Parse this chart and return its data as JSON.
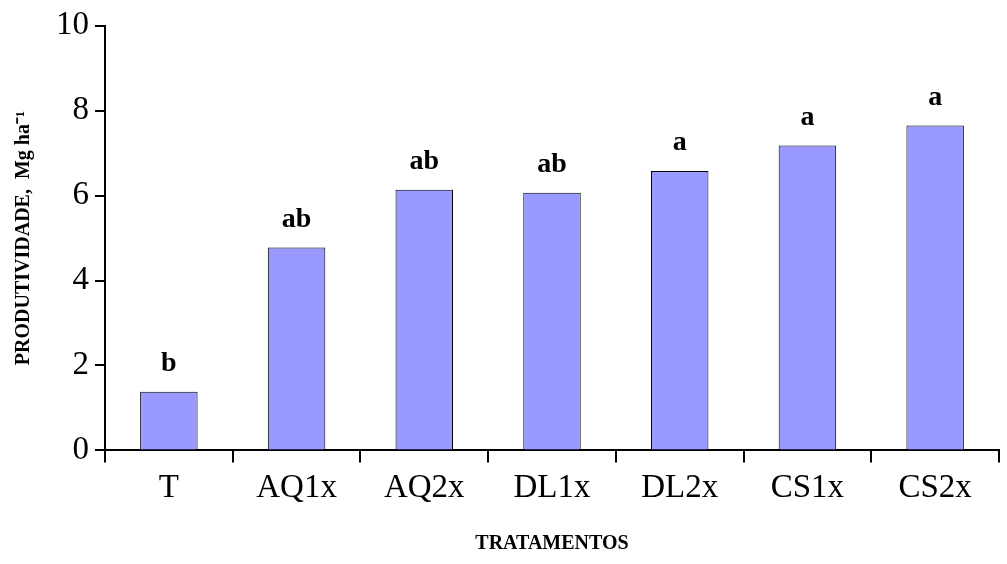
{
  "chart_data": {
    "type": "bar",
    "xlabel": "TRATAMENTOS",
    "ylabel": "PRODUTIVIDADE,  Mg ha⁻¹",
    "categories": [
      "T",
      "AQ1x",
      "AQ2x",
      "DL1x",
      "DL2x",
      "CS1x",
      "CS2x"
    ],
    "values": [
      1.38,
      4.78,
      6.14,
      6.07,
      6.58,
      7.18,
      7.65
    ],
    "color": "#9999ff",
    "ylim": [
      0,
      10
    ],
    "yticks": [
      0,
      2,
      4,
      6,
      8,
      10
    ],
    "grid": false,
    "legend": false,
    "annotations": [
      {
        "text": "b",
        "x": "T",
        "y": 1.38
      },
      {
        "text": "ab",
        "x": "AQ1x",
        "y": 4.78
      },
      {
        "text": "ab",
        "x": "AQ2x",
        "y": 6.14
      },
      {
        "text": "ab",
        "x": "DL1x",
        "y": 6.07
      },
      {
        "text": "a",
        "x": "DL2x",
        "y": 6.58
      },
      {
        "text": "a",
        "x": "CS1x",
        "y": 7.18
      },
      {
        "text": "a",
        "x": "CS2x",
        "y": 7.65
      }
    ]
  }
}
